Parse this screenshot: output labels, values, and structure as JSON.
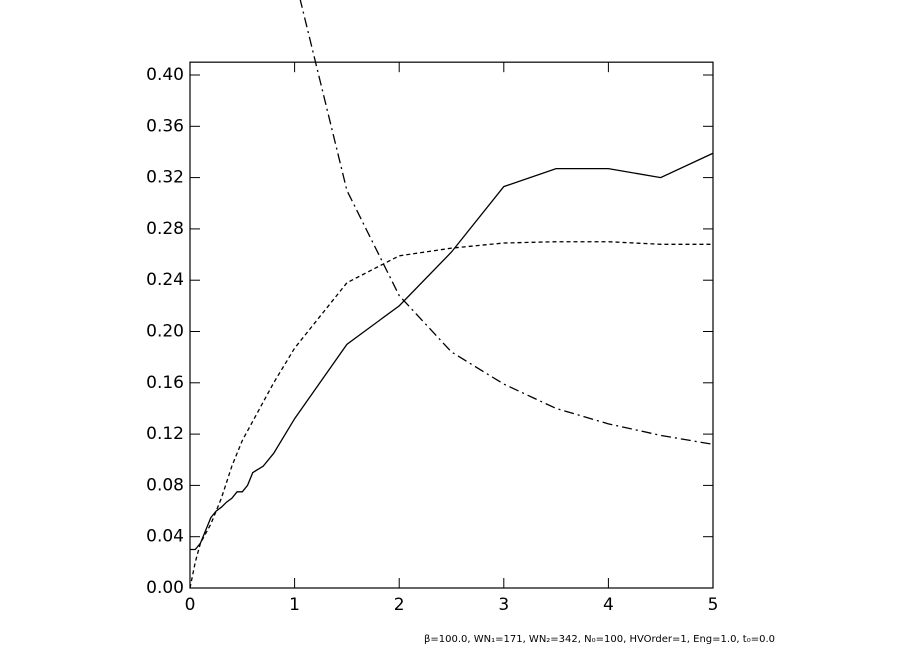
{
  "chart_data": {
    "type": "line",
    "footer": "β=100.0, WN₁=171, WN₂=342, N₀=100, HVOrder=1, Eng=1.0, t₀=0.0",
    "xlim": [
      0,
      5
    ],
    "xticks": [
      0,
      1,
      2,
      3,
      4,
      5
    ],
    "ylim": [
      0,
      0.41
    ],
    "yticks": [
      {
        "value": 0,
        "label": "0.00"
      },
      {
        "value": 0.04,
        "label": "0.04"
      },
      {
        "value": 0.08,
        "label": "0.08"
      },
      {
        "value": 0.12,
        "label": "0.12"
      },
      {
        "value": 0.16,
        "label": "0.16"
      },
      {
        "value": 0.2,
        "label": "0.20"
      },
      {
        "value": 0.24,
        "label": "0.24"
      },
      {
        "value": 0.28,
        "label": "0.28"
      },
      {
        "value": 0.32,
        "label": "0.32"
      },
      {
        "value": 0.36,
        "label": "0.36"
      },
      {
        "value": 0.4,
        "label": "0.40"
      }
    ],
    "series": [
      {
        "color": "#000000",
        "style": "solid",
        "x": [
          0,
          0.05,
          0.1,
          0.15,
          0.2,
          0.25,
          0.3,
          0.35,
          0.4,
          0.45,
          0.5,
          0.55,
          0.6,
          0.7,
          0.8,
          1,
          1.5,
          2,
          2.5,
          3,
          3.5,
          4,
          4.5,
          5
        ],
        "values": [
          0.03,
          0.03,
          0.035,
          0.045,
          0.055,
          0.06,
          0.063,
          0.067,
          0.07,
          0.075,
          0.075,
          0.08,
          0.09,
          0.095,
          0.105,
          0.132,
          0.19,
          0.22,
          0.262,
          0.313,
          0.327,
          0.327,
          0.32,
          0.339
        ]
      },
      {
        "color": "#000000",
        "style": "dashed",
        "x": [
          0,
          0.05,
          0.1,
          0.2,
          0.3,
          0.4,
          0.5,
          0.6,
          0.7,
          0.8,
          1,
          1.5,
          2,
          2.5,
          3,
          3.5,
          4,
          4.5,
          5
        ],
        "values": [
          0,
          0.02,
          0.035,
          0.05,
          0.07,
          0.095,
          0.115,
          0.13,
          0.145,
          0.16,
          0.187,
          0.238,
          0.259,
          0.265,
          0.269,
          0.27,
          0.27,
          0.268,
          0.268
        ]
      },
      {
        "color": "#000000",
        "style": "dashdot",
        "x": [
          1.05,
          1.2,
          1.5,
          2,
          2.5,
          3,
          3.5,
          4,
          4.5,
          5
        ],
        "values": [
          0.46,
          0.41,
          0.31,
          0.228,
          0.184,
          0.159,
          0.14,
          0.128,
          0.119,
          0.112
        ]
      }
    ]
  }
}
